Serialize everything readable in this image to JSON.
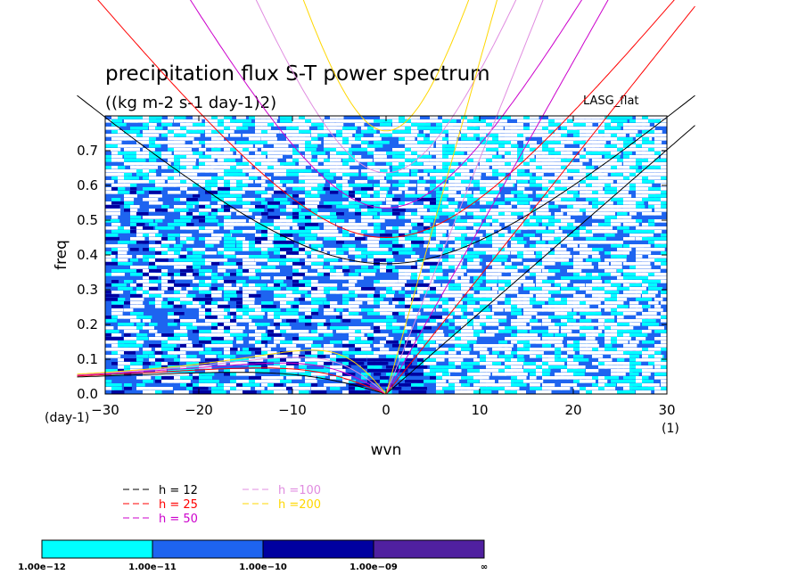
{
  "chart_data": {
    "type": "heatmap",
    "title": "precipitation flux S-T power spectrum",
    "subtitle": "((kg m-2 s-1 day-1)2)",
    "model_label": "LASG_flat",
    "xlabel": "wvn",
    "ylabel": "freq",
    "x_unit_label": "(1)",
    "y_unit_label": "(day-1)",
    "xlim": [
      -30,
      30
    ],
    "ylim": [
      0,
      0.8
    ],
    "x_ticks": [
      -30,
      -20,
      -10,
      0,
      10,
      20,
      30
    ],
    "x_tick_labels": [
      "−30",
      "−20",
      "−10",
      "0",
      "10",
      "20",
      "30"
    ],
    "y_ticks": [
      0,
      0.1,
      0.2,
      0.3,
      0.4,
      0.5,
      0.6,
      0.7
    ],
    "y_tick_labels": [
      "0.0",
      "0.1",
      "0.2",
      "0.3",
      "0.4",
      "0.5",
      "0.6",
      "0.7"
    ],
    "color_levels": {
      "labels": [
        "1.00e−12",
        "1.00e−11",
        "1.00e−10",
        "1.00e−09",
        "∞"
      ],
      "colors": [
        "#00ffff",
        "#1e64f0",
        "#0000a0",
        "#5020a0"
      ]
    },
    "dominant_fill": "#1e64f0",
    "dispersion_curves": [
      {
        "name": "h = 12",
        "equivalent_depth": 12,
        "color": "#000000"
      },
      {
        "name": "h = 25",
        "equivalent_depth": 25,
        "color": "#ff0000"
      },
      {
        "name": "h = 50",
        "equivalent_depth": 50,
        "color": "#cc00cc"
      },
      {
        "name": "h =100",
        "equivalent_depth": 100,
        "color": "#e08ce0"
      },
      {
        "name": "h =200",
        "equivalent_depth": 200,
        "color": "#ffd700"
      }
    ],
    "grid": false,
    "legend_position": "bottom-left"
  }
}
